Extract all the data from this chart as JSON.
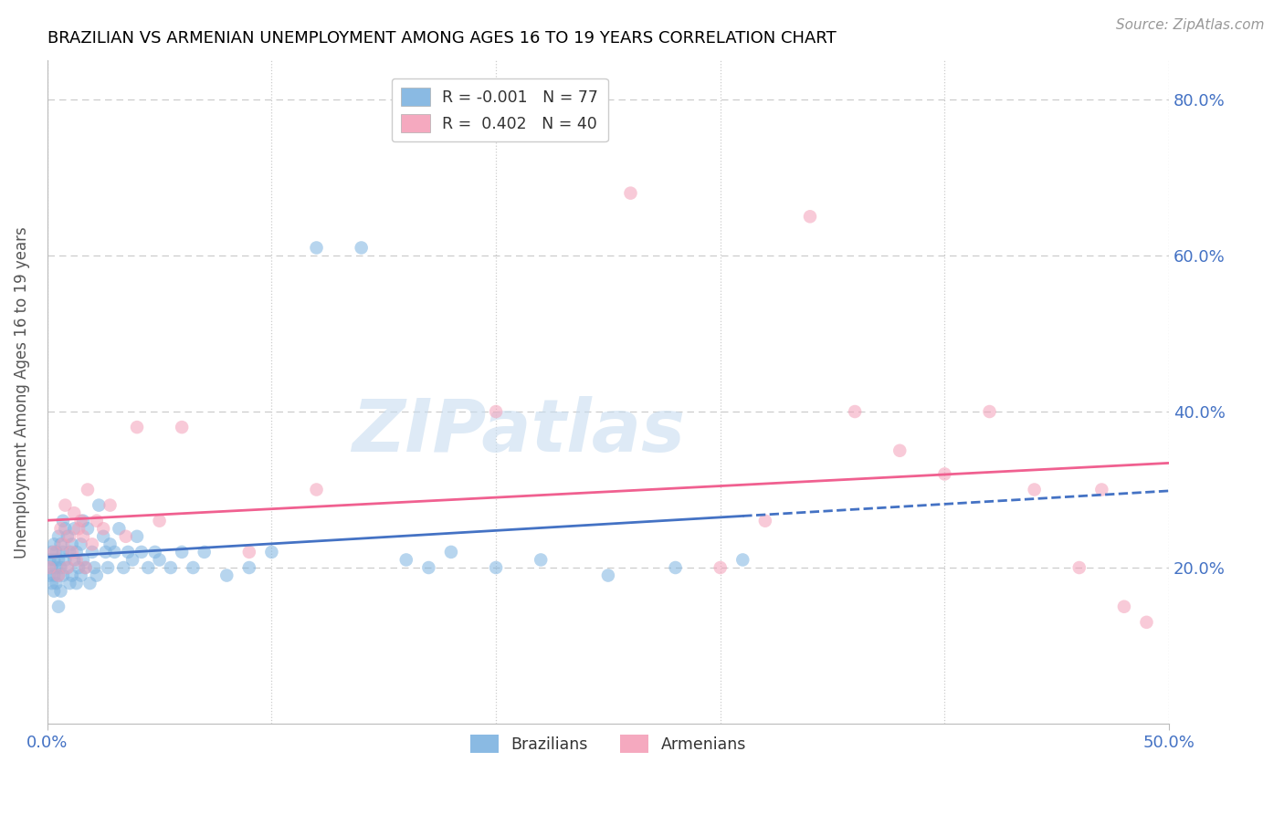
{
  "title": "BRAZILIAN VS ARMENIAN UNEMPLOYMENT AMONG AGES 16 TO 19 YEARS CORRELATION CHART",
  "source": "Source: ZipAtlas.com",
  "ylabel": "Unemployment Among Ages 16 to 19 years",
  "xlim": [
    0.0,
    0.5
  ],
  "ylim": [
    0.0,
    0.85
  ],
  "yticks": [
    0.2,
    0.4,
    0.6,
    0.8
  ],
  "ytick_labels": [
    "20.0%",
    "40.0%",
    "60.0%",
    "80.0%"
  ],
  "xtick_labels": [
    "0.0%",
    "50.0%"
  ],
  "xtick_vals": [
    0.0,
    0.5
  ],
  "title_fontsize": 13,
  "axis_label_color": "#4472c4",
  "grid_color": "#cccccc",
  "legend_labels": [
    "R = -0.001   N = 77",
    "R =  0.402   N = 40"
  ],
  "bottom_legend_labels": [
    "Brazilians",
    "Armenians"
  ],
  "brazilian_x": [
    0.001,
    0.001,
    0.002,
    0.002,
    0.002,
    0.003,
    0.003,
    0.003,
    0.003,
    0.004,
    0.004,
    0.004,
    0.005,
    0.005,
    0.005,
    0.005,
    0.006,
    0.006,
    0.006,
    0.007,
    0.007,
    0.007,
    0.008,
    0.008,
    0.009,
    0.009,
    0.01,
    0.01,
    0.011,
    0.011,
    0.012,
    0.012,
    0.013,
    0.013,
    0.014,
    0.015,
    0.015,
    0.016,
    0.016,
    0.017,
    0.018,
    0.019,
    0.02,
    0.021,
    0.022,
    0.023,
    0.025,
    0.026,
    0.027,
    0.028,
    0.03,
    0.032,
    0.034,
    0.036,
    0.038,
    0.04,
    0.042,
    0.045,
    0.048,
    0.05,
    0.055,
    0.06,
    0.065,
    0.07,
    0.08,
    0.09,
    0.1,
    0.12,
    0.14,
    0.16,
    0.17,
    0.18,
    0.2,
    0.22,
    0.25,
    0.28,
    0.31
  ],
  "brazilian_y": [
    0.19,
    0.21,
    0.18,
    0.2,
    0.22,
    0.17,
    0.19,
    0.21,
    0.23,
    0.18,
    0.2,
    0.22,
    0.15,
    0.19,
    0.21,
    0.24,
    0.17,
    0.2,
    0.23,
    0.26,
    0.19,
    0.22,
    0.21,
    0.25,
    0.2,
    0.24,
    0.18,
    0.22,
    0.19,
    0.23,
    0.21,
    0.25,
    0.18,
    0.22,
    0.2,
    0.19,
    0.23,
    0.21,
    0.26,
    0.2,
    0.25,
    0.18,
    0.22,
    0.2,
    0.19,
    0.28,
    0.24,
    0.22,
    0.2,
    0.23,
    0.22,
    0.25,
    0.2,
    0.22,
    0.21,
    0.24,
    0.22,
    0.2,
    0.22,
    0.21,
    0.2,
    0.22,
    0.2,
    0.22,
    0.19,
    0.2,
    0.22,
    0.61,
    0.61,
    0.21,
    0.2,
    0.22,
    0.2,
    0.21,
    0.19,
    0.2,
    0.21
  ],
  "armenian_x": [
    0.001,
    0.003,
    0.005,
    0.006,
    0.007,
    0.008,
    0.009,
    0.01,
    0.011,
    0.012,
    0.013,
    0.014,
    0.015,
    0.016,
    0.017,
    0.018,
    0.02,
    0.022,
    0.025,
    0.028,
    0.035,
    0.04,
    0.05,
    0.06,
    0.09,
    0.12,
    0.2,
    0.26,
    0.3,
    0.32,
    0.34,
    0.36,
    0.38,
    0.4,
    0.42,
    0.44,
    0.46,
    0.47,
    0.48,
    0.49
  ],
  "armenian_y": [
    0.2,
    0.22,
    0.19,
    0.25,
    0.23,
    0.28,
    0.2,
    0.24,
    0.22,
    0.27,
    0.21,
    0.25,
    0.26,
    0.24,
    0.2,
    0.3,
    0.23,
    0.26,
    0.25,
    0.28,
    0.24,
    0.38,
    0.26,
    0.38,
    0.22,
    0.3,
    0.4,
    0.68,
    0.2,
    0.26,
    0.65,
    0.4,
    0.35,
    0.32,
    0.4,
    0.3,
    0.2,
    0.3,
    0.15,
    0.13
  ],
  "blue_line_color": "#4472c4",
  "pink_line_color": "#f06090",
  "blue_dot_color": "#7db3e0",
  "pink_dot_color": "#f4a0b8",
  "dot_size": 110,
  "dot_alpha": 0.55,
  "line_width": 2.0,
  "watermark_text": "ZIPatlas",
  "watermark_color": "#c8ddf0",
  "watermark_alpha": 0.6
}
